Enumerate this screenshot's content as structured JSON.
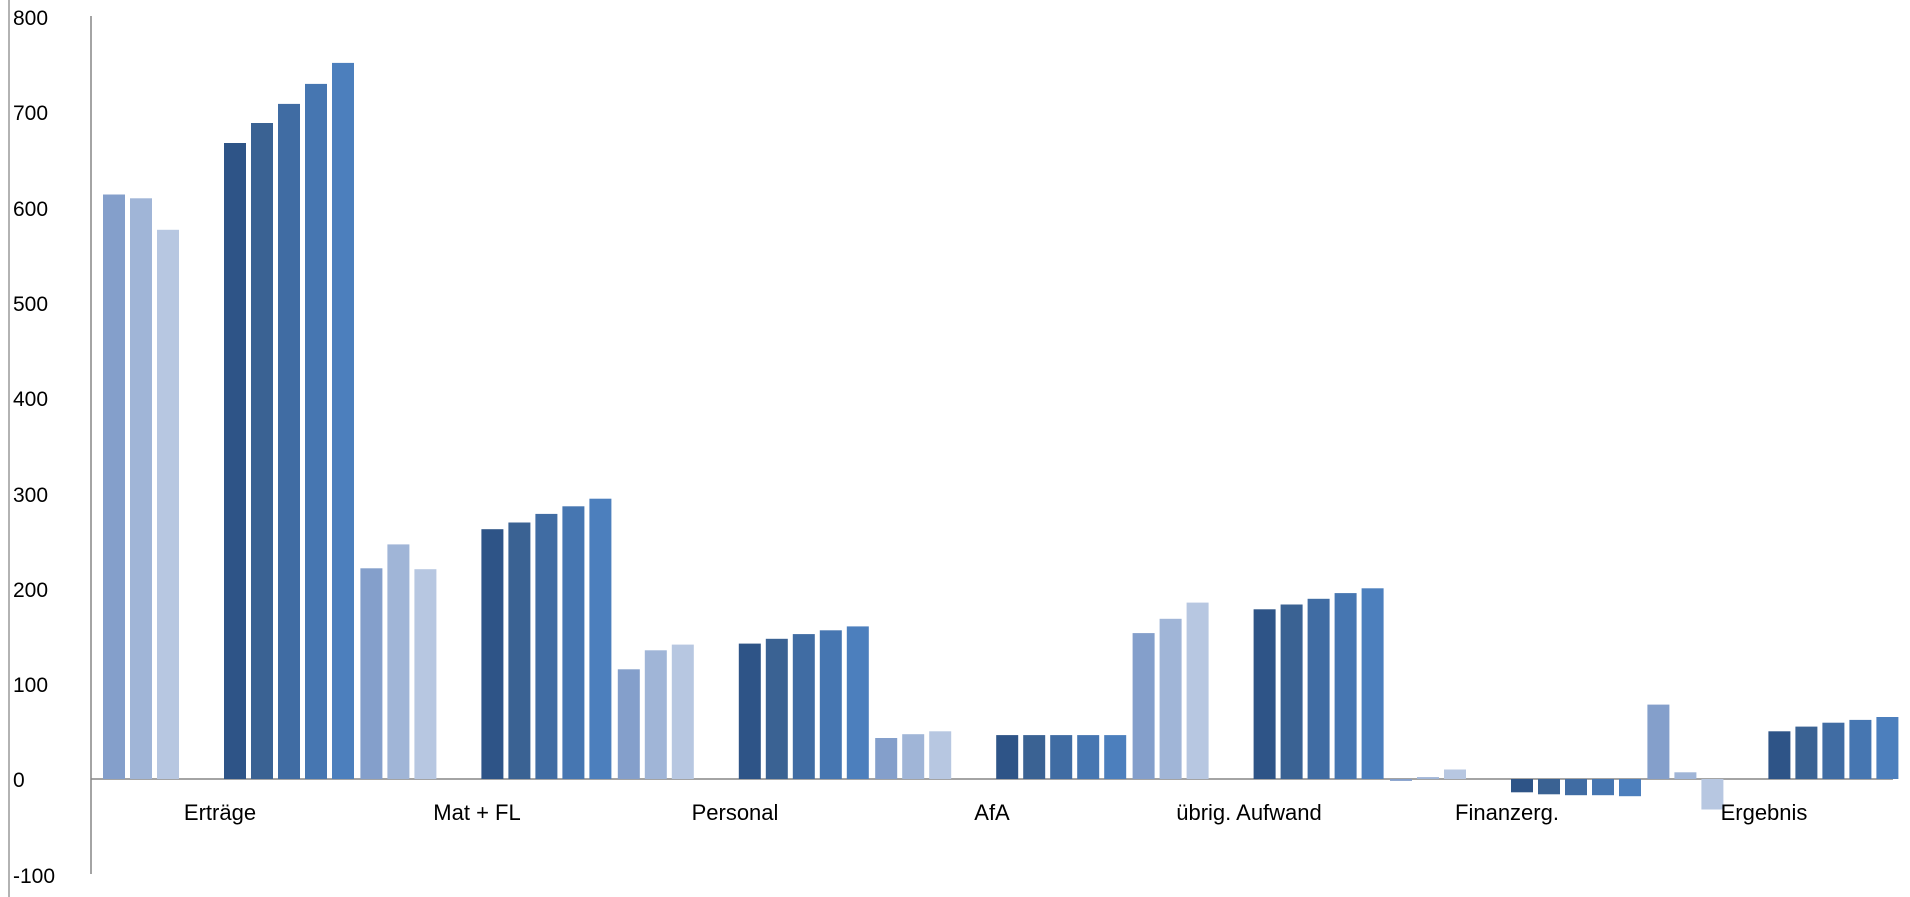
{
  "chart_data": {
    "type": "bar",
    "categories": [
      "Erträge",
      "Mat + FL",
      "Personal",
      "AfA",
      "übrig. Aufwand",
      "Finanzerg.",
      "Ergebnis"
    ],
    "series": [
      {
        "group": "hist",
        "color": "#849fcb",
        "values": [
          613,
          221,
          115,
          43,
          153,
          -2,
          78
        ]
      },
      {
        "group": "hist",
        "color": "#a0b5d7",
        "values": [
          609,
          246,
          135,
          47,
          168,
          2,
          7
        ]
      },
      {
        "group": "hist",
        "color": "#b7c7e1",
        "values": [
          576,
          220,
          141,
          50,
          185,
          10,
          -32
        ]
      },
      {
        "group": "plan",
        "color": "#2e5487",
        "values": [
          667,
          262,
          142,
          46,
          178,
          -14,
          50
        ]
      },
      {
        "group": "plan",
        "color": "#3a6293",
        "values": [
          688,
          269,
          147,
          46,
          183,
          -16,
          55
        ]
      },
      {
        "group": "plan",
        "color": "#406ca3",
        "values": [
          708,
          278,
          152,
          46,
          189,
          -17,
          59
        ]
      },
      {
        "group": "plan",
        "color": "#4676b1",
        "values": [
          729,
          286,
          156,
          46,
          195,
          -17,
          62
        ]
      },
      {
        "group": "plan",
        "color": "#4c7fbd",
        "values": [
          751,
          294,
          160,
          46,
          200,
          -18,
          65
        ]
      }
    ],
    "ylim": [
      -100,
      800
    ],
    "yticks": [
      "800",
      "700",
      "600",
      "500",
      "400",
      "300",
      "200",
      "100",
      "0",
      "-100"
    ],
    "grid": false,
    "legend": "none"
  }
}
